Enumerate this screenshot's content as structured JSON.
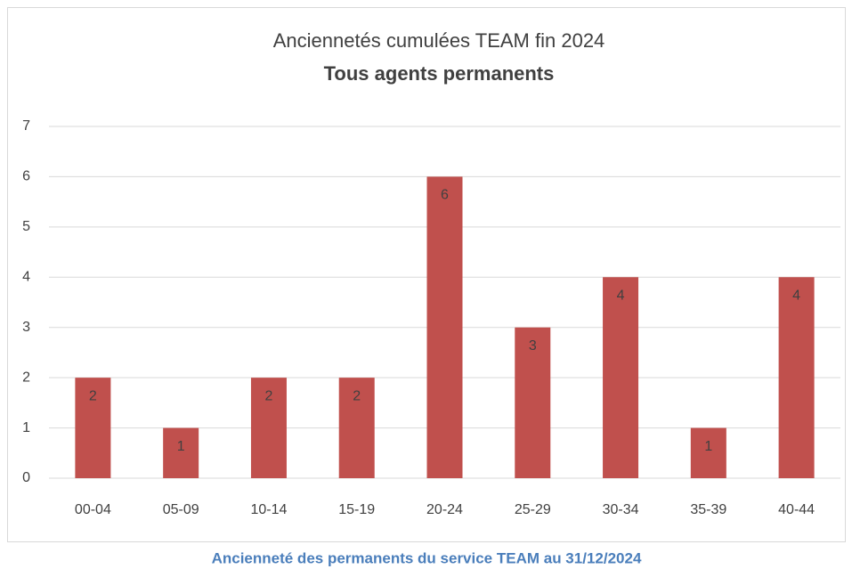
{
  "chart_data": {
    "type": "bar",
    "title": "Anciennetés cumulées TEAM fin 2024",
    "subtitle": "Tous agents permanents",
    "caption": "Ancienneté des permanents du service TEAM au 31/12/2024",
    "categories": [
      "00-04",
      "05-09",
      "10-14",
      "15-19",
      "20-24",
      "25-29",
      "30-34",
      "35-39",
      "40-44"
    ],
    "values": [
      2,
      1,
      2,
      2,
      6,
      3,
      4,
      1,
      4
    ],
    "color": "#c0504d",
    "ylim": [
      0,
      7
    ],
    "yticks": [
      0,
      1,
      2,
      3,
      4,
      5,
      6,
      7
    ],
    "grid": true
  }
}
